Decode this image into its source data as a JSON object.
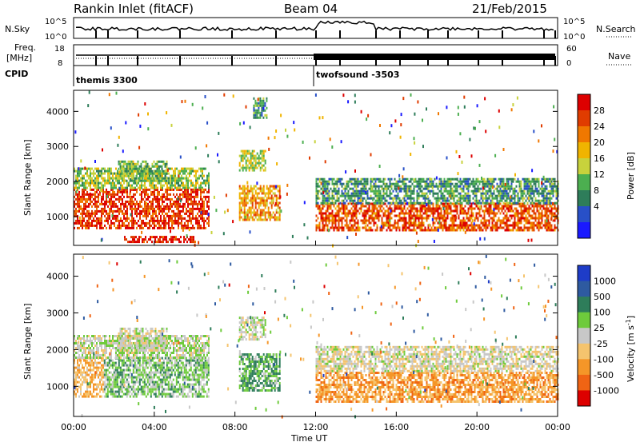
{
  "header": {
    "station": "Rankin Inlet (fitACF)",
    "beam": "Beam 04",
    "date": "21/Feb/2015"
  },
  "top_panels": {
    "nsky_label": "N.Sky",
    "nsky_ticks": [
      "10^5",
      "10^0"
    ],
    "nsearch_label": "N.Search",
    "nsearch_ticks": [
      "10^5",
      "10^0"
    ],
    "freq_label_1": "Freq.",
    "freq_label_2": "[MHz]",
    "freq_ticks": [
      "18",
      "8"
    ],
    "nave_label": "Nave",
    "nave_ticks": [
      "60",
      "0"
    ],
    "cpid_label": "CPID",
    "cpid_segments": [
      {
        "name": "themis 3300",
        "start_hour": 0
      },
      {
        "name": "twofsound -3503",
        "start_hour": 12
      }
    ]
  },
  "axes": {
    "ylabel": "Slant Range [km]",
    "xlabel": "Time UT",
    "x_ticks": [
      "00:00",
      "04:00",
      "08:00",
      "12:00",
      "16:00",
      "20:00",
      "00:00"
    ],
    "y_ticks": [
      "1000",
      "2000",
      "3000",
      "4000"
    ]
  },
  "colorbars": {
    "power": {
      "label": "Power [dB]",
      "ticks": [
        "4",
        "8",
        "12",
        "16",
        "20",
        "24",
        "28"
      ],
      "colors": [
        "#1a1aff",
        "#2850c8",
        "#2e7d5a",
        "#4caf50",
        "#c8d23c",
        "#f0b400",
        "#f07800",
        "#e03c00",
        "#dd0000"
      ]
    },
    "velocity": {
      "label": "Velocity [m s",
      "label_sup": "-1",
      "label_end": "]",
      "ticks": [
        "1000",
        "500",
        "100",
        "25",
        "-25",
        "-100",
        "-500",
        "-1000"
      ],
      "colors": [
        "#1e3cc8",
        "#2e5aa0",
        "#2e7d5a",
        "#6ecb3c",
        "#c8c8c8",
        "#f5c46e",
        "#f59628",
        "#f06414",
        "#dd0000"
      ]
    }
  },
  "chart_data": [
    {
      "type": "heatmap",
      "title": "Power",
      "xlabel": "Time UT",
      "ylabel": "Slant Range [km]",
      "xlim": [
        0,
        24
      ],
      "ylim": [
        180,
        4600
      ],
      "colorbar_label": "Power [dB]",
      "colorbar_range": [
        0,
        30
      ],
      "regions": [
        {
          "t": [
            0.0,
            6.7
          ],
          "r": [
            700,
            1800
          ],
          "value": 26
        },
        {
          "t": [
            0.0,
            6.7
          ],
          "r": [
            1800,
            2400
          ],
          "value": 14
        },
        {
          "t": [
            2.2,
            4.6
          ],
          "r": [
            2000,
            2600
          ],
          "value": 12
        },
        {
          "t": [
            8.2,
            10.2
          ],
          "r": [
            900,
            1900
          ],
          "value": 20
        },
        {
          "t": [
            8.2,
            9.5
          ],
          "r": [
            2300,
            2900
          ],
          "value": 15
        },
        {
          "t": [
            8.9,
            9.6
          ],
          "r": [
            3800,
            4400
          ],
          "value": 10
        },
        {
          "t": [
            12.0,
            24.0
          ],
          "r": [
            600,
            1400
          ],
          "value": 24
        },
        {
          "t": [
            12.0,
            24.0
          ],
          "r": [
            1400,
            2100
          ],
          "value": 10
        },
        {
          "t": [
            2.5,
            6.0
          ],
          "r": [
            250,
            450
          ],
          "value": 27
        }
      ]
    },
    {
      "type": "heatmap",
      "title": "Velocity",
      "xlabel": "Time UT",
      "ylabel": "Slant Range [km]",
      "xlim": [
        0,
        24
      ],
      "ylim": [
        180,
        4600
      ],
      "colorbar_label": "Velocity [m s-1]",
      "colorbar_range": [
        -1000,
        1000
      ],
      "regions": [
        {
          "t": [
            0.0,
            1.5
          ],
          "r": [
            700,
            1800
          ],
          "value": -300
        },
        {
          "t": [
            1.5,
            6.7
          ],
          "r": [
            700,
            1800
          ],
          "value": 200
        },
        {
          "t": [
            0.0,
            6.7
          ],
          "r": [
            1800,
            2400
          ],
          "value": 50
        },
        {
          "t": [
            2.2,
            4.6
          ],
          "r": [
            2000,
            2600
          ],
          "value": 0
        },
        {
          "t": [
            8.2,
            10.2
          ],
          "r": [
            900,
            1900
          ],
          "value": 300
        },
        {
          "t": [
            8.2,
            9.5
          ],
          "r": [
            2300,
            2900
          ],
          "value": 0
        },
        {
          "t": [
            12.0,
            24.0
          ],
          "r": [
            600,
            1400
          ],
          "value": -400
        },
        {
          "t": [
            12.0,
            24.0
          ],
          "r": [
            1400,
            2100
          ],
          "value": -60
        }
      ]
    }
  ]
}
